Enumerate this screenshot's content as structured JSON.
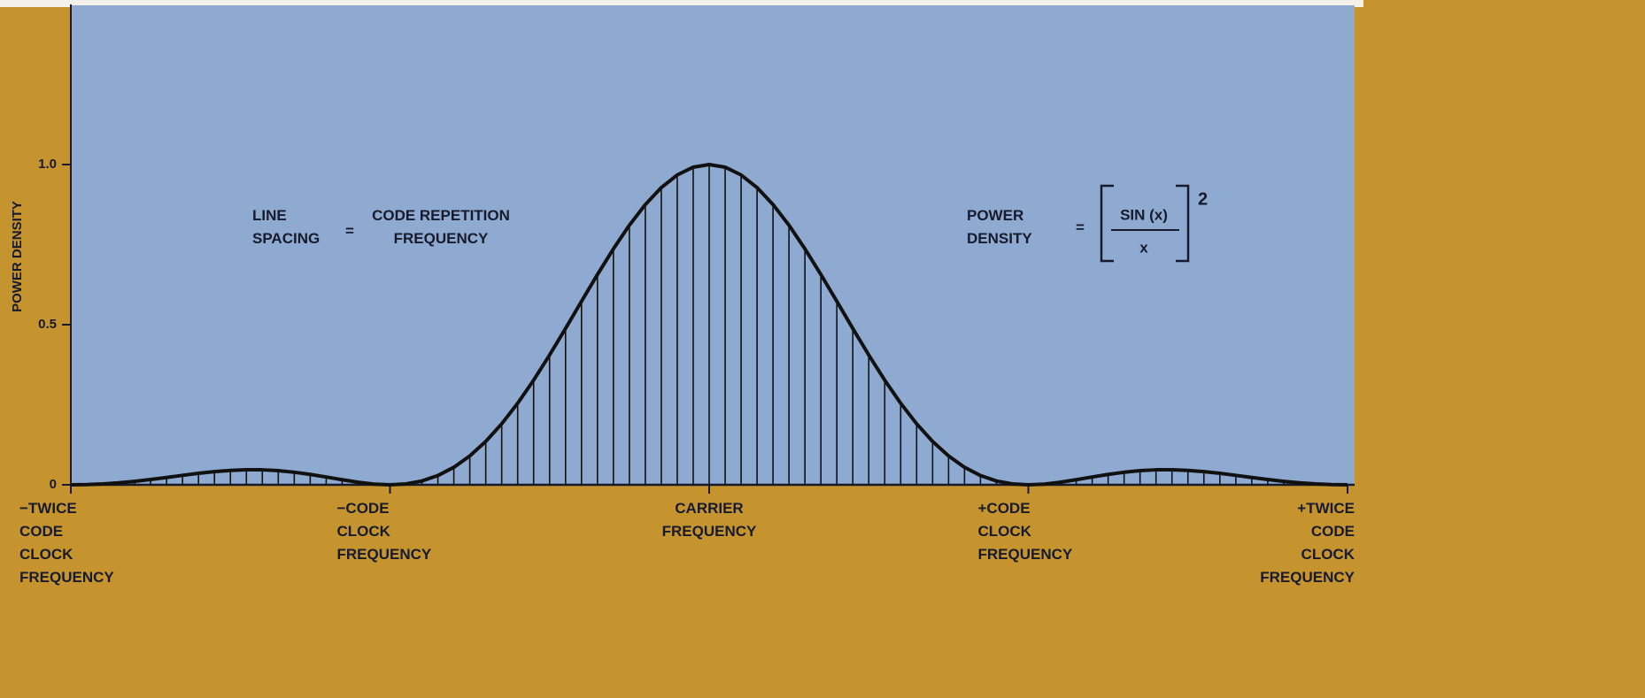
{
  "chart_data": {
    "type": "line",
    "ylabel": "POWER DENSITY",
    "x": [
      -2,
      -1.95,
      -1.9,
      -1.85,
      -1.8,
      -1.75,
      -1.7,
      -1.65,
      -1.6,
      -1.55,
      -1.5,
      -1.45,
      -1.4,
      -1.35,
      -1.3,
      -1.25,
      -1.2,
      -1.15,
      -1.1,
      -1.05,
      -1,
      -0.95,
      -0.9,
      -0.85,
      -0.8,
      -0.75,
      -0.7,
      -0.65,
      -0.6,
      -0.55,
      -0.5,
      -0.45,
      -0.4,
      -0.35,
      -0.3,
      -0.25,
      -0.2,
      -0.15,
      -0.1,
      -0.05,
      0,
      0.05,
      0.1,
      0.15,
      0.2,
      0.25,
      0.3,
      0.35,
      0.4,
      0.45,
      0.5,
      0.55,
      0.6,
      0.65,
      0.7,
      0.75,
      0.8,
      0.85,
      0.9,
      0.95,
      1,
      1.05,
      1.1,
      1.15,
      1.2,
      1.25,
      1.3,
      1.35,
      1.4,
      1.45,
      1.5,
      1.55,
      1.6,
      1.65,
      1.7,
      1.75,
      1.8,
      1.85,
      1.9,
      1.95,
      2
    ],
    "values": [
      0,
      0.0007,
      0.0027,
      0.0061,
      0.0108,
      0.0165,
      0.0229,
      0.0295,
      0.0358,
      0.0411,
      0.045,
      0.047,
      0.0468,
      0.0441,
      0.0392,
      0.0324,
      0.0243,
      0.0158,
      0.008,
      0.0022,
      0,
      0.0027,
      0.0119,
      0.0289,
      0.0547,
      0.0901,
      0.1353,
      0.1904,
      0.2546,
      0.3268,
      0.4053,
      0.4881,
      0.5728,
      0.6566,
      0.7368,
      0.8106,
      0.8751,
      0.9281,
      0.9675,
      0.9918,
      1,
      0.9918,
      0.9675,
      0.9281,
      0.8751,
      0.8106,
      0.7368,
      0.6566,
      0.5728,
      0.4881,
      0.4053,
      0.3268,
      0.2546,
      0.1904,
      0.1353,
      0.0901,
      0.0547,
      0.0289,
      0.0119,
      0.0027,
      0,
      0.0022,
      0.008,
      0.0158,
      0.0243,
      0.0324,
      0.0392,
      0.0441,
      0.0468,
      0.047,
      0.045,
      0.0411,
      0.0358,
      0.0295,
      0.0229,
      0.0165,
      0.0108,
      0.0061,
      0.0027,
      0.0007,
      0
    ],
    "color": "#111111",
    "xlim": [
      -2,
      2
    ],
    "xticks": [
      {
        "value": -2,
        "label": "−TWICE\nCODE\nCLOCK\nFREQUENCY"
      },
      {
        "value": -1,
        "label": "−CODE\nCLOCK\nFREQUENCY"
      },
      {
        "value": 0,
        "label": "CARRIER\nFREQUENCY"
      },
      {
        "value": 1,
        "label": "+CODE\nCLOCK\nFREQUENCY"
      },
      {
        "value": 2,
        "label": "+TWICE\nCODE\nCLOCK\nFREQUENCY"
      }
    ],
    "ylim": [
      0,
      1.5
    ],
    "yticks": [
      0,
      0.5,
      {
        "value": 1,
        "label": "1.0"
      }
    ],
    "annotations": {
      "line_spacing": {
        "left": "LINE\nSPACING",
        "equals": "=",
        "right": "CODE REPETITION\nFREQUENCY"
      },
      "power_density": {
        "left": "POWER\nDENSITY",
        "equals": "=",
        "numerator": "SIN (x)",
        "denominator": "x",
        "exponent": "2"
      }
    }
  }
}
